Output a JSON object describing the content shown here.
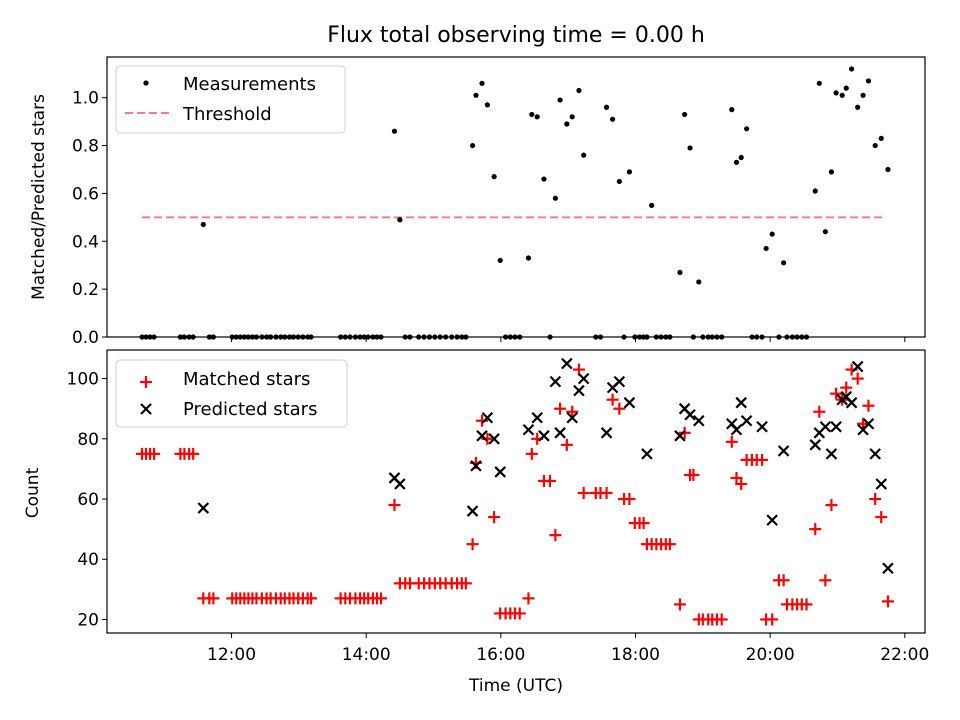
{
  "chart_data": [
    {
      "type": "scatter",
      "title": "Flux total observing time = 0.00 h",
      "ylabel": "Matched/Predicted stars",
      "xlabel": "",
      "xlim": [
        10.15,
        22.3
      ],
      "ylim": [
        0,
        1.17
      ],
      "yticks": [
        0.0,
        0.2,
        0.4,
        0.6,
        0.8,
        1.0
      ],
      "ytick_labels": [
        "0.0",
        "0.2",
        "0.4",
        "0.6",
        "0.8",
        "1.0"
      ],
      "legend": {
        "position": "top-left",
        "entries": [
          "Measurements",
          "Threshold"
        ]
      },
      "threshold": {
        "label": "Threshold",
        "y": 0.5,
        "x_start": 10.67,
        "x_end": 21.68,
        "color": "#f08080"
      },
      "series": [
        {
          "name": "Measurements",
          "color": "#000000",
          "x": [
            10.67,
            10.73,
            10.79,
            10.85,
            11.24,
            11.3,
            11.37,
            11.43,
            11.58,
            11.67,
            11.73,
            12.01,
            12.07,
            12.13,
            12.19,
            12.25,
            12.31,
            12.37,
            12.45,
            12.52,
            12.58,
            12.66,
            12.73,
            12.79,
            12.86,
            12.92,
            12.99,
            13.06,
            13.13,
            13.18,
            13.62,
            13.69,
            13.76,
            13.84,
            13.91,
            13.97,
            14.03,
            14.1,
            14.16,
            14.22,
            14.42,
            14.5,
            14.58,
            14.65,
            14.78,
            14.86,
            14.94,
            15.02,
            15.1,
            15.18,
            15.27,
            15.35,
            15.42,
            15.48,
            15.58,
            15.63,
            15.72,
            15.8,
            15.9,
            15.99,
            16.07,
            16.14,
            16.21,
            16.28,
            16.41,
            16.46,
            16.54,
            16.64,
            16.73,
            16.81,
            16.88,
            16.98,
            17.06,
            17.16,
            17.23,
            17.41,
            17.48,
            17.57,
            17.66,
            17.76,
            17.83,
            17.91,
            17.99,
            18.06,
            18.12,
            18.17,
            18.24,
            18.31,
            18.38,
            18.45,
            18.51,
            18.66,
            18.73,
            18.81,
            18.86,
            18.94,
            19.0,
            19.08,
            19.14,
            19.21,
            19.28,
            19.43,
            19.5,
            19.57,
            19.65,
            19.73,
            19.8,
            19.88,
            19.94,
            20.03,
            20.13,
            20.2,
            20.25,
            20.33,
            20.4,
            20.47,
            20.54,
            20.67,
            20.73,
            20.82,
            20.91,
            20.98,
            21.07,
            21.13,
            21.21,
            21.3,
            21.38,
            21.46,
            21.56,
            21.65,
            21.75
          ],
          "y": [
            0,
            0,
            0,
            0,
            0,
            0,
            0,
            0,
            0.47,
            0,
            0,
            0,
            0,
            0,
            0,
            0,
            0,
            0,
            0,
            0,
            0,
            0,
            0,
            0,
            0,
            0,
            0,
            0,
            0,
            0,
            0,
            0,
            0,
            0,
            0,
            0,
            0,
            0,
            0,
            0,
            0.86,
            0.49,
            0,
            0,
            0,
            0,
            0,
            0,
            0,
            0,
            0,
            0,
            0,
            0,
            0.8,
            1.01,
            1.06,
            0.97,
            0.67,
            0.32,
            0,
            0,
            0,
            0,
            0.33,
            0.93,
            0.92,
            0.66,
            0,
            0.58,
            0.99,
            0.89,
            0.92,
            1.03,
            0.76,
            0,
            0,
            0.96,
            0.91,
            0.65,
            0,
            0.69,
            0,
            0,
            0,
            0,
            0.55,
            0,
            0,
            0,
            0,
            0.27,
            0.93,
            0.79,
            0,
            0.23,
            0,
            0,
            0,
            0,
            0,
            0.95,
            0.73,
            0.75,
            0.87,
            0,
            0,
            0,
            0.37,
            0.43,
            0,
            0.31,
            0,
            0,
            0,
            0,
            0,
            0.61,
            1.06,
            0.44,
            0.69,
            1.02,
            1.01,
            1.04,
            1.12,
            0.96,
            1.01,
            1.07,
            0.8,
            0.83,
            0.7
          ]
        }
      ]
    },
    {
      "type": "scatter",
      "title": "",
      "ylabel": "Count",
      "xlabel": "Time (UTC)",
      "xlim": [
        10.15,
        22.3
      ],
      "ylim": [
        15.5,
        109.5
      ],
      "yticks": [
        20,
        40,
        60,
        80,
        100
      ],
      "ytick_labels": [
        "20",
        "40",
        "60",
        "80",
        "100"
      ],
      "xticks": [
        12,
        14,
        16,
        18,
        20,
        22
      ],
      "xtick_labels": [
        "12:00",
        "14:00",
        "16:00",
        "18:00",
        "20:00",
        "22:00"
      ],
      "legend": {
        "position": "top-left",
        "entries": [
          "Matched stars",
          "Predicted stars"
        ]
      },
      "series": [
        {
          "name": "Matched stars",
          "color": "#ff0000",
          "marker": "plus",
          "x": [
            10.67,
            10.73,
            10.79,
            10.85,
            11.24,
            11.3,
            11.37,
            11.43,
            11.58,
            11.67,
            11.73,
            12.01,
            12.07,
            12.13,
            12.19,
            12.25,
            12.31,
            12.37,
            12.45,
            12.52,
            12.58,
            12.66,
            12.73,
            12.79,
            12.86,
            12.92,
            12.99,
            13.06,
            13.13,
            13.18,
            13.62,
            13.69,
            13.76,
            13.84,
            13.91,
            13.97,
            14.03,
            14.1,
            14.16,
            14.22,
            14.42,
            14.5,
            14.58,
            14.65,
            14.78,
            14.86,
            14.94,
            15.02,
            15.1,
            15.18,
            15.27,
            15.35,
            15.42,
            15.48,
            15.58,
            15.63,
            15.72,
            15.8,
            15.9,
            15.99,
            16.07,
            16.14,
            16.21,
            16.28,
            16.41,
            16.46,
            16.54,
            16.64,
            16.73,
            16.81,
            16.88,
            16.98,
            17.06,
            17.16,
            17.23,
            17.41,
            17.48,
            17.57,
            17.66,
            17.76,
            17.83,
            17.91,
            17.99,
            18.06,
            18.12,
            18.17,
            18.24,
            18.31,
            18.38,
            18.45,
            18.51,
            18.66,
            18.73,
            18.81,
            18.86,
            18.94,
            19.0,
            19.08,
            19.14,
            19.21,
            19.28,
            19.43,
            19.5,
            19.57,
            19.65,
            19.73,
            19.8,
            19.88,
            19.94,
            20.03,
            20.13,
            20.2,
            20.25,
            20.33,
            20.4,
            20.47,
            20.54,
            20.67,
            20.73,
            20.82,
            20.91,
            20.98,
            21.07,
            21.13,
            21.21,
            21.3,
            21.38,
            21.46,
            21.56,
            21.65,
            21.75
          ],
          "y": [
            75,
            75,
            75,
            75,
            75,
            75,
            75,
            75,
            27,
            27,
            27,
            27,
            27,
            27,
            27,
            27,
            27,
            27,
            27,
            27,
            27,
            27,
            27,
            27,
            27,
            27,
            27,
            27,
            27,
            27,
            27,
            27,
            27,
            27,
            27,
            27,
            27,
            27,
            27,
            27,
            58,
            32,
            32,
            32,
            32,
            32,
            32,
            32,
            32,
            32,
            32,
            32,
            32,
            32,
            45,
            72,
            86,
            80,
            54,
            22,
            22,
            22,
            22,
            22,
            27,
            75,
            80,
            66,
            66,
            48,
            90,
            78,
            89,
            103,
            62,
            62,
            62,
            62,
            93,
            90,
            60,
            60,
            52,
            52,
            52,
            45,
            45,
            45,
            45,
            45,
            45,
            25,
            82,
            68,
            68,
            20,
            20,
            20,
            20,
            20,
            20,
            79,
            67,
            65,
            73,
            73,
            73,
            73,
            20,
            20,
            33,
            33,
            25,
            25,
            25,
            25,
            25,
            50,
            89,
            33,
            58,
            95,
            93,
            97,
            103,
            100,
            85,
            91,
            60,
            54,
            26
          ]
        },
        {
          "name": "Predicted stars",
          "color": "#000000",
          "marker": "x",
          "x": [
            11.58,
            14.42,
            14.5,
            15.58,
            15.63,
            15.72,
            15.8,
            15.9,
            15.99,
            16.41,
            16.54,
            16.64,
            16.81,
            16.88,
            16.98,
            17.06,
            17.16,
            17.23,
            17.57,
            17.66,
            17.76,
            17.91,
            18.17,
            18.66,
            18.73,
            18.81,
            18.94,
            19.43,
            19.5,
            19.57,
            19.65,
            19.88,
            20.03,
            20.2,
            20.67,
            20.73,
            20.82,
            20.91,
            20.98,
            21.07,
            21.13,
            21.21,
            21.3,
            21.38,
            21.46,
            21.56,
            21.65,
            21.75
          ],
          "y": [
            57,
            67,
            65,
            56,
            71,
            81,
            87,
            80,
            69,
            83,
            87,
            81,
            99,
            82,
            105,
            87,
            96,
            100,
            82,
            97,
            99,
            92,
            75,
            81,
            90,
            88,
            86,
            85,
            83,
            92,
            86,
            84,
            53,
            76,
            78,
            82,
            84,
            75,
            84,
            93,
            94,
            92,
            104,
            83,
            85,
            75,
            65,
            37
          ]
        }
      ]
    }
  ]
}
